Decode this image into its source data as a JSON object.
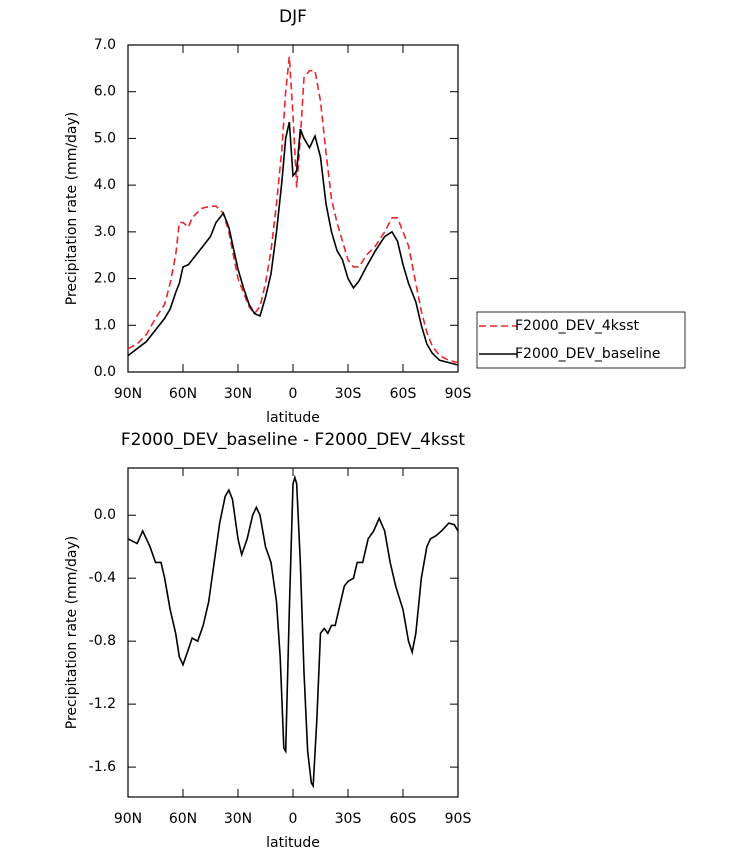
{
  "chart_data": [
    {
      "type": "line",
      "title": "DJF",
      "xlabel": "latitude",
      "ylabel": "Precipitation rate (mm/day)",
      "x": [
        90,
        85,
        80,
        75,
        70,
        67,
        64,
        62,
        60,
        57,
        55,
        50,
        45,
        42,
        38,
        35,
        30,
        27,
        24,
        21,
        18,
        15,
        12,
        9,
        6,
        4,
        2,
        0,
        -2,
        -4,
        -6,
        -9,
        -12,
        -15,
        -18,
        -21,
        -24,
        -27,
        -30,
        -33,
        -36,
        -40,
        -45,
        -50,
        -54,
        -57,
        -60,
        -63,
        -67,
        -70,
        -73,
        -76,
        -80,
        -85,
        -90
      ],
      "series": [
        {
          "name": "F2000_DEV_4ksst",
          "color": "#e8262b",
          "linestyle": "dashed",
          "values": [
            0.5,
            0.6,
            0.8,
            1.15,
            1.45,
            1.9,
            2.5,
            3.2,
            3.2,
            3.1,
            3.3,
            3.5,
            3.55,
            3.55,
            3.4,
            3.0,
            2.0,
            1.7,
            1.4,
            1.25,
            1.4,
            1.9,
            2.6,
            3.6,
            4.8,
            6.0,
            6.75,
            5.5,
            3.95,
            5.0,
            6.3,
            6.45,
            6.45,
            5.8,
            4.7,
            3.7,
            3.2,
            2.8,
            2.4,
            2.25,
            2.25,
            2.5,
            2.7,
            3.0,
            3.3,
            3.3,
            3.0,
            2.7,
            1.9,
            1.3,
            0.85,
            0.55,
            0.35,
            0.25,
            0.2
          ]
        },
        {
          "name": "F2000_DEV_baseline",
          "color": "#000000",
          "linestyle": "solid",
          "values": [
            0.35,
            0.5,
            0.65,
            0.9,
            1.15,
            1.35,
            1.7,
            1.9,
            2.25,
            2.3,
            2.4,
            2.65,
            2.9,
            3.2,
            3.4,
            3.1,
            2.2,
            1.8,
            1.45,
            1.25,
            1.2,
            1.6,
            2.1,
            3.0,
            4.1,
            5.0,
            5.35,
            4.2,
            4.3,
            5.2,
            5.0,
            4.8,
            5.05,
            4.6,
            3.6,
            3.0,
            2.6,
            2.4,
            2.0,
            1.8,
            1.95,
            2.25,
            2.6,
            2.9,
            3.0,
            2.8,
            2.3,
            1.9,
            1.5,
            1.0,
            0.6,
            0.4,
            0.25,
            0.2,
            0.15
          ]
        }
      ],
      "xlim": [
        90,
        -90
      ],
      "xticks": [
        {
          "value": 90,
          "label": "90N"
        },
        {
          "value": 60,
          "label": "60N"
        },
        {
          "value": 30,
          "label": "30N"
        },
        0,
        {
          "value": -30,
          "label": "30S"
        },
        {
          "value": -60,
          "label": "60S"
        },
        {
          "value": -90,
          "label": "90S"
        }
      ],
      "ylim": [
        0,
        7
      ],
      "yticks": [
        {
          "value": 0,
          "label": "0.0"
        },
        {
          "value": 1,
          "label": "1.0"
        },
        {
          "value": 2,
          "label": "2.0"
        },
        {
          "value": 3,
          "label": "3.0"
        },
        {
          "value": 4,
          "label": "4.0"
        },
        {
          "value": 5,
          "label": "5.0"
        },
        {
          "value": 6,
          "label": "6.0"
        },
        {
          "value": 7,
          "label": "7.0"
        }
      ],
      "legend": "right"
    },
    {
      "type": "line",
      "title": "F2000_DEV_baseline - F2000_DEV_4ksst",
      "xlabel": "latitude",
      "ylabel": "Precipitation rate (mm/day)",
      "x": [
        90,
        85,
        82,
        78,
        75,
        72,
        70,
        67,
        64,
        62,
        60,
        57,
        55,
        52,
        49,
        46,
        43,
        40,
        37,
        35,
        33,
        30,
        28,
        25,
        22,
        20,
        18,
        15,
        12,
        9,
        7,
        5,
        4,
        2,
        0,
        -1,
        -2,
        -4,
        -6,
        -8,
        -10,
        -11,
        -13,
        -15,
        -17,
        -19,
        -21,
        -23,
        -25,
        -28,
        -30,
        -33,
        -35,
        -38,
        -41,
        -44,
        -47,
        -50,
        -53,
        -56,
        -60,
        -63,
        -65,
        -67,
        -70,
        -73,
        -75,
        -78,
        -81,
        -85,
        -88,
        -90
      ],
      "values": [
        -0.15,
        -0.18,
        -0.1,
        -0.2,
        -0.3,
        -0.3,
        -0.4,
        -0.6,
        -0.75,
        -0.9,
        -0.95,
        -0.85,
        -0.78,
        -0.8,
        -0.7,
        -0.55,
        -0.3,
        -0.05,
        0.12,
        0.16,
        0.1,
        -0.15,
        -0.25,
        -0.15,
        0.0,
        0.05,
        0.0,
        -0.2,
        -0.3,
        -0.55,
        -0.9,
        -1.48,
        -1.5,
        -0.6,
        0.2,
        0.24,
        0.2,
        -0.3,
        -1.0,
        -1.5,
        -1.7,
        -1.72,
        -1.3,
        -0.75,
        -0.72,
        -0.75,
        -0.7,
        -0.7,
        -0.6,
        -0.45,
        -0.42,
        -0.4,
        -0.3,
        -0.3,
        -0.15,
        -0.1,
        -0.02,
        -0.1,
        -0.3,
        -0.45,
        -0.6,
        -0.8,
        -0.87,
        -0.75,
        -0.4,
        -0.2,
        -0.15,
        -0.13,
        -0.1,
        -0.05,
        -0.06,
        -0.1
      ],
      "color": "#000000",
      "xlim": [
        90,
        -90
      ],
      "xticks": [
        {
          "value": 90,
          "label": "90N"
        },
        {
          "value": 60,
          "label": "60N"
        },
        {
          "value": 30,
          "label": "30N"
        },
        0,
        {
          "value": -30,
          "label": "30S"
        },
        {
          "value": -60,
          "label": "60S"
        },
        {
          "value": -90,
          "label": "90S"
        }
      ],
      "ylim": [
        -1.79,
        0.3
      ],
      "yticks": [
        {
          "value": 0,
          "label": "0.0"
        },
        -0.4,
        -0.8,
        -1.2,
        -1.6
      ]
    }
  ]
}
